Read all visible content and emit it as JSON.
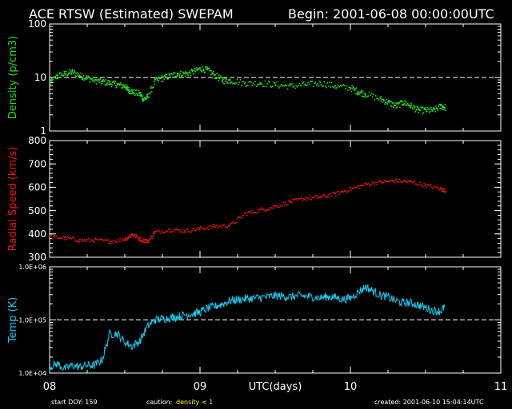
{
  "header": {
    "title": "ACE RTSW (Estimated) SWEPAM",
    "begin": "Begin: 2001-06-08 00:00:00UTC"
  },
  "footer": {
    "start_doy": "start DOY: 159",
    "caution_label": "caution:",
    "caution_value": "density < 1",
    "created": "created: 2001-06-10 15:04:14UTC",
    "xlabel": "UTC(days)"
  },
  "colors": {
    "background": "#000000",
    "axes": "#ffffff",
    "density": "#22dd22",
    "speed": "#ee1111",
    "temp": "#11ccf0",
    "caution": "#ffff00"
  },
  "chart_data": [
    {
      "type": "scatter",
      "ylabel": "Density (p/cm3)",
      "yscale": "log",
      "ylim": [
        1,
        100
      ],
      "yticks": [
        "100",
        "10",
        "1"
      ],
      "reference_line": 10,
      "xlim": [
        8,
        11
      ],
      "series": [
        {
          "x": [
            8.0,
            8.05,
            8.1,
            8.15,
            8.2,
            8.25,
            8.3,
            8.35,
            8.4,
            8.45,
            8.5,
            8.52,
            8.55,
            8.6,
            8.62,
            8.65,
            8.7,
            8.75,
            8.8,
            8.85,
            8.9,
            8.95,
            9.0,
            9.05,
            9.1,
            9.15,
            9.2,
            9.3,
            9.4,
            9.5,
            9.6,
            9.7,
            9.8,
            9.9,
            10.0,
            10.05,
            10.1,
            10.2,
            10.25,
            10.3,
            10.35,
            10.4,
            10.45,
            10.5,
            10.55,
            10.6,
            10.63
          ],
          "y": [
            8,
            11,
            12,
            13,
            11,
            10,
            9,
            8.5,
            8,
            7.5,
            7,
            6,
            5.5,
            5,
            4,
            4.5,
            9,
            10,
            11,
            12,
            12,
            13,
            15,
            14,
            11,
            9,
            9,
            8,
            8,
            7.5,
            7,
            7.5,
            8,
            7,
            6.5,
            5.5,
            5,
            4,
            3.5,
            3,
            3.5,
            3,
            2.5,
            2.5,
            2.5,
            3,
            2.8
          ]
        }
      ]
    },
    {
      "type": "scatter",
      "ylabel": "Radial Speed (km/s)",
      "ylim": [
        300,
        800
      ],
      "yticks": [
        "800",
        "700",
        "600",
        "500",
        "400",
        "300"
      ],
      "xlim": [
        8,
        11
      ],
      "series": [
        {
          "x": [
            8.0,
            8.1,
            8.2,
            8.3,
            8.4,
            8.5,
            8.55,
            8.6,
            8.65,
            8.7,
            8.8,
            8.9,
            9.0,
            9.1,
            9.2,
            9.3,
            9.4,
            9.5,
            9.6,
            9.7,
            9.8,
            9.9,
            10.0,
            10.1,
            10.2,
            10.3,
            10.4,
            10.5,
            10.6,
            10.63
          ],
          "y": [
            390,
            385,
            375,
            375,
            370,
            380,
            400,
            380,
            370,
            410,
            420,
            415,
            425,
            435,
            440,
            490,
            505,
            520,
            540,
            555,
            560,
            575,
            595,
            615,
            625,
            630,
            625,
            610,
            595,
            585
          ]
        }
      ]
    },
    {
      "type": "line",
      "ylabel": "Temp (K)",
      "yscale": "log",
      "ylim": [
        10000,
        1000000
      ],
      "yticks": [
        "1.0E+06",
        "1.0E+05",
        "1.0E+04"
      ],
      "reference_line": 100000,
      "xlim": [
        8,
        11
      ],
      "xticks": [
        "08",
        "09",
        "10",
        "11"
      ],
      "xlabel": "UTC(days)",
      "series": [
        {
          "x": [
            8.0,
            8.05,
            8.1,
            8.15,
            8.2,
            8.25,
            8.3,
            8.35,
            8.4,
            8.45,
            8.5,
            8.55,
            8.6,
            8.65,
            8.7,
            8.75,
            8.8,
            8.85,
            8.9,
            8.95,
            9.0,
            9.05,
            9.1,
            9.15,
            9.2,
            9.25,
            9.3,
            9.35,
            9.4,
            9.45,
            9.5,
            9.55,
            9.6,
            9.65,
            9.7,
            9.75,
            9.8,
            9.85,
            9.9,
            9.95,
            10.0,
            10.05,
            10.1,
            10.15,
            10.2,
            10.25,
            10.3,
            10.35,
            10.4,
            10.45,
            10.5,
            10.55,
            10.6,
            10.63
          ],
          "y": [
            13000,
            15000,
            12000,
            14000,
            13000,
            14000,
            14000,
            18000,
            55000,
            55000,
            38000,
            32000,
            40000,
            75000,
            100000,
            105000,
            110000,
            115000,
            125000,
            130000,
            140000,
            165000,
            180000,
            200000,
            230000,
            240000,
            250000,
            255000,
            265000,
            270000,
            285000,
            280000,
            270000,
            285000,
            280000,
            270000,
            260000,
            275000,
            265000,
            245000,
            260000,
            330000,
            420000,
            350000,
            290000,
            270000,
            230000,
            210000,
            210000,
            190000,
            170000,
            150000,
            145000,
            180000
          ]
        }
      ]
    }
  ]
}
